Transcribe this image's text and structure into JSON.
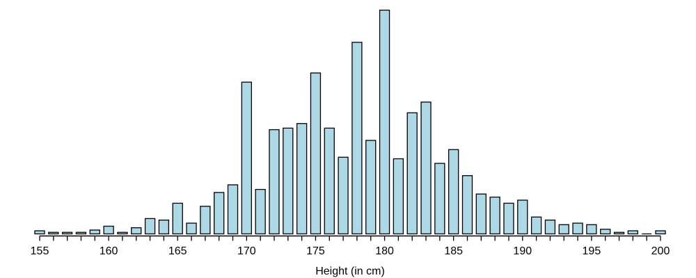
{
  "chart_data": {
    "type": "bar",
    "title": "",
    "xlabel": "Height (in cm)",
    "ylabel": "",
    "xlim": [
      155,
      200
    ],
    "xticks": [
      155,
      160,
      165,
      170,
      175,
      180,
      185,
      190,
      195,
      200
    ],
    "minor_ticks_every": 1,
    "grid": false,
    "legend": null,
    "bar_color": "#add8e6",
    "edge_color": "#000000",
    "categories": [
      155,
      156,
      157,
      158,
      159,
      160,
      161,
      162,
      163,
      164,
      165,
      166,
      167,
      168,
      169,
      170,
      171,
      172,
      173,
      174,
      175,
      176,
      177,
      178,
      179,
      180,
      181,
      182,
      183,
      184,
      185,
      186,
      187,
      188,
      189,
      190,
      191,
      192,
      193,
      194,
      195,
      196,
      197,
      198,
      199,
      200
    ],
    "values": [
      2,
      1,
      1,
      1,
      2.5,
      5,
      1,
      4,
      10,
      9,
      20,
      7,
      18,
      27,
      32,
      99,
      29,
      68,
      69,
      72,
      105,
      69,
      50,
      125,
      61,
      146,
      49,
      79,
      86,
      46,
      55,
      38,
      26,
      24,
      20,
      22,
      11,
      9,
      6,
      7,
      6,
      3,
      1,
      2,
      0,
      2
    ]
  }
}
